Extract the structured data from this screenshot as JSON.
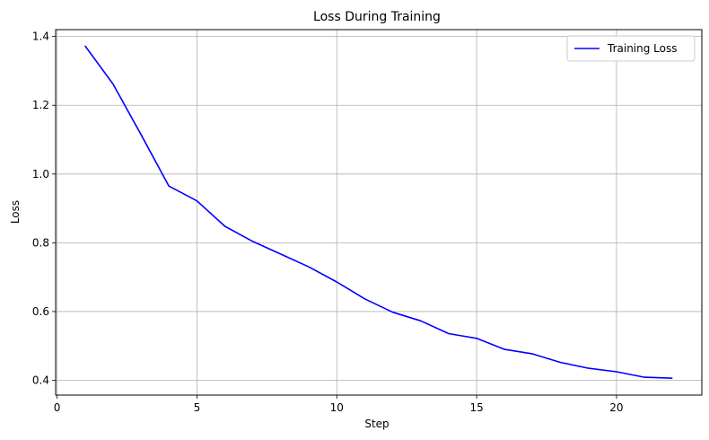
{
  "chart_data": {
    "type": "line",
    "title": "Loss During Training",
    "xlabel": "Step",
    "ylabel": "Loss",
    "xlim": [
      -0.05,
      23.05
    ],
    "ylim": [
      0.357,
      1.42
    ],
    "xticks": [
      0,
      5,
      10,
      15,
      20
    ],
    "yticks": [
      0.4,
      0.6,
      0.8,
      1.0,
      1.2,
      1.4
    ],
    "ytick_labels": [
      "0.4",
      "0.6",
      "0.8",
      "1.0",
      "1.2",
      "1.4"
    ],
    "grid": true,
    "legend_position": "top-right",
    "series": [
      {
        "name": "Training Loss",
        "color": "#0000ff",
        "x": [
          1,
          2,
          3,
          4,
          5,
          6,
          7,
          8,
          9,
          10,
          11,
          12,
          13,
          14,
          15,
          16,
          17,
          18,
          19,
          20,
          21,
          22
        ],
        "y": [
          1.373,
          1.262,
          1.115,
          0.965,
          0.922,
          0.848,
          0.804,
          0.767,
          0.73,
          0.686,
          0.637,
          0.598,
          0.573,
          0.536,
          0.522,
          0.49,
          0.477,
          0.452,
          0.435,
          0.425,
          0.409,
          0.406
        ]
      }
    ]
  }
}
